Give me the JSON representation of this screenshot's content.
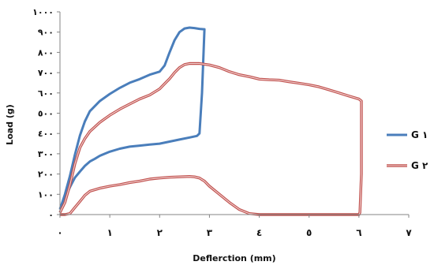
{
  "chart_data": {
    "type": "line",
    "xlabel": "Deflerction (mm)",
    "ylabel": "Load (g)",
    "xlim": [
      0,
      7
    ],
    "ylim": [
      0,
      1000
    ],
    "x_ticks": [
      0,
      1,
      2,
      3,
      4,
      5,
      6,
      7
    ],
    "x_tick_labels": [
      "٠",
      "١",
      "٢",
      "٣",
      "٤",
      "٥",
      "٦",
      "٧"
    ],
    "y_ticks": [
      0,
      100,
      200,
      300,
      400,
      500,
      600,
      700,
      800,
      900,
      1000
    ],
    "y_tick_labels": [
      "٠",
      "١٠٠",
      "٢٠٠",
      "٣٠٠",
      "٤٠٠",
      "٥٠٠",
      "٦٠٠",
      "٧٠٠",
      "٨٠٠",
      "٩٠٠",
      "١٠٠٠"
    ],
    "grid": false,
    "legend_position": "right",
    "series": [
      {
        "name": "G ١",
        "color": "#4a7ebb",
        "style": "solid",
        "points": [
          [
            0.0,
            25
          ],
          [
            0.1,
            100
          ],
          [
            0.2,
            190
          ],
          [
            0.3,
            295
          ],
          [
            0.4,
            390
          ],
          [
            0.5,
            460
          ],
          [
            0.6,
            510
          ],
          [
            0.8,
            560
          ],
          [
            1.0,
            595
          ],
          [
            1.2,
            625
          ],
          [
            1.4,
            650
          ],
          [
            1.6,
            668
          ],
          [
            1.8,
            690
          ],
          [
            2.0,
            705
          ],
          [
            2.1,
            735
          ],
          [
            2.2,
            800
          ],
          [
            2.3,
            860
          ],
          [
            2.4,
            900
          ],
          [
            2.5,
            918
          ],
          [
            2.6,
            922
          ],
          [
            2.7,
            920
          ],
          [
            2.8,
            916
          ],
          [
            2.9,
            914
          ],
          [
            2.85,
            600
          ],
          [
            2.8,
            400
          ],
          [
            2.75,
            388
          ],
          [
            2.6,
            380
          ],
          [
            2.4,
            370
          ],
          [
            2.2,
            360
          ],
          [
            2.0,
            350
          ],
          [
            1.8,
            345
          ],
          [
            1.6,
            340
          ],
          [
            1.4,
            335
          ],
          [
            1.2,
            325
          ],
          [
            1.0,
            310
          ],
          [
            0.8,
            290
          ],
          [
            0.7,
            275
          ],
          [
            0.6,
            262
          ],
          [
            0.5,
            240
          ],
          [
            0.4,
            212
          ],
          [
            0.3,
            182
          ],
          [
            0.2,
            135
          ],
          [
            0.1,
            80
          ],
          [
            0.0,
            30
          ]
        ]
      },
      {
        "name": "G ٢",
        "color": "#c0504d",
        "style": "double",
        "points": [
          [
            0.0,
            10
          ],
          [
            0.1,
            60
          ],
          [
            0.2,
            145
          ],
          [
            0.3,
            250
          ],
          [
            0.4,
            330
          ],
          [
            0.5,
            375
          ],
          [
            0.6,
            410
          ],
          [
            0.8,
            455
          ],
          [
            1.0,
            490
          ],
          [
            1.2,
            520
          ],
          [
            1.4,
            545
          ],
          [
            1.6,
            570
          ],
          [
            1.8,
            590
          ],
          [
            2.0,
            620
          ],
          [
            2.1,
            645
          ],
          [
            2.2,
            670
          ],
          [
            2.3,
            700
          ],
          [
            2.4,
            725
          ],
          [
            2.5,
            740
          ],
          [
            2.6,
            745
          ],
          [
            2.8,
            745
          ],
          [
            3.0,
            738
          ],
          [
            3.2,
            725
          ],
          [
            3.4,
            705
          ],
          [
            3.6,
            690
          ],
          [
            3.8,
            680
          ],
          [
            4.0,
            668
          ],
          [
            4.2,
            665
          ],
          [
            4.4,
            663
          ],
          [
            4.6,
            655
          ],
          [
            4.8,
            648
          ],
          [
            5.0,
            640
          ],
          [
            5.2,
            630
          ],
          [
            5.4,
            615
          ],
          [
            5.6,
            600
          ],
          [
            5.8,
            585
          ],
          [
            6.0,
            570
          ],
          [
            6.05,
            560
          ],
          [
            6.05,
            400
          ],
          [
            6.05,
            200
          ],
          [
            6.02,
            10
          ],
          [
            6.0,
            0
          ],
          [
            5.5,
            0
          ],
          [
            5.0,
            0
          ],
          [
            4.5,
            0
          ],
          [
            4.0,
            0
          ],
          [
            3.8,
            5
          ],
          [
            3.6,
            25
          ],
          [
            3.4,
            60
          ],
          [
            3.2,
            100
          ],
          [
            3.0,
            140
          ],
          [
            2.9,
            165
          ],
          [
            2.8,
            180
          ],
          [
            2.7,
            186
          ],
          [
            2.6,
            188
          ],
          [
            2.4,
            186
          ],
          [
            2.2,
            184
          ],
          [
            2.0,
            180
          ],
          [
            1.8,
            175
          ],
          [
            1.6,
            165
          ],
          [
            1.4,
            158
          ],
          [
            1.2,
            148
          ],
          [
            1.0,
            140
          ],
          [
            0.8,
            130
          ],
          [
            0.6,
            115
          ],
          [
            0.5,
            95
          ],
          [
            0.4,
            65
          ],
          [
            0.3,
            35
          ],
          [
            0.2,
            5
          ],
          [
            0.1,
            0
          ],
          [
            0.0,
            0
          ]
        ]
      }
    ]
  }
}
